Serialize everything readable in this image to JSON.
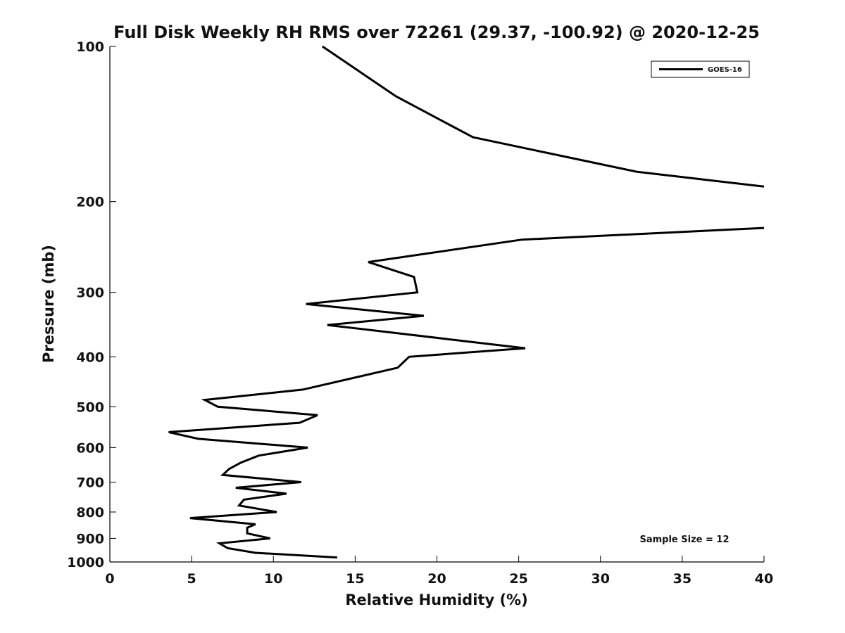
{
  "chart_data": {
    "type": "line",
    "title": "Full Disk Weekly RH RMS over 72261 (29.37, -100.92) @ 2020-12-25",
    "xlabel": "Relative Humidity (%)",
    "ylabel": "Pressure (mb)",
    "xlim": [
      0,
      40
    ],
    "ylim": [
      100,
      1000
    ],
    "yscale": "log",
    "y_reversed": true,
    "xticks": [
      "0",
      "5",
      "10",
      "15",
      "20",
      "25",
      "30",
      "35",
      "40"
    ],
    "xtick_values": [
      0,
      5,
      10,
      15,
      20,
      25,
      30,
      35,
      40
    ],
    "yticks": [
      "100",
      "200",
      "300",
      "400",
      "500",
      "600",
      "700",
      "800",
      "900",
      "1000"
    ],
    "ytick_values": [
      100,
      200,
      300,
      400,
      500,
      600,
      700,
      800,
      900,
      1000
    ],
    "legend": {
      "position": "top-right",
      "entries": [
        "GOES-16"
      ]
    },
    "annotation": "Sample Size = 12",
    "series": [
      {
        "name": "GOES-16",
        "color": "#000000",
        "segments": [
          [
            {
              "x": 13.0,
              "y": 100
            },
            {
              "x": 17.5,
              "y": 125
            },
            {
              "x": 22.2,
              "y": 150
            },
            {
              "x": 32.2,
              "y": 175
            },
            {
              "x": 40.0,
              "y": 187
            }
          ],
          [
            {
              "x": 40.0,
              "y": 225
            },
            {
              "x": 25.2,
              "y": 237
            },
            {
              "x": 15.8,
              "y": 262
            },
            {
              "x": 18.6,
              "y": 280
            },
            {
              "x": 18.8,
              "y": 300
            },
            {
              "x": 12.0,
              "y": 316
            },
            {
              "x": 19.2,
              "y": 333
            },
            {
              "x": 13.3,
              "y": 347
            },
            {
              "x": 25.4,
              "y": 385
            },
            {
              "x": 18.3,
              "y": 400
            },
            {
              "x": 17.6,
              "y": 420
            },
            {
              "x": 11.8,
              "y": 463
            },
            {
              "x": 5.8,
              "y": 485
            },
            {
              "x": 6.6,
              "y": 500
            },
            {
              "x": 12.7,
              "y": 519
            },
            {
              "x": 11.6,
              "y": 537
            },
            {
              "x": 3.6,
              "y": 560
            },
            {
              "x": 5.4,
              "y": 577
            },
            {
              "x": 12.1,
              "y": 600
            },
            {
              "x": 9.1,
              "y": 622
            },
            {
              "x": 8.0,
              "y": 642
            },
            {
              "x": 7.3,
              "y": 660
            },
            {
              "x": 6.9,
              "y": 678
            },
            {
              "x": 11.7,
              "y": 700
            },
            {
              "x": 7.7,
              "y": 718
            },
            {
              "x": 10.8,
              "y": 737
            },
            {
              "x": 8.2,
              "y": 757
            },
            {
              "x": 7.9,
              "y": 777
            },
            {
              "x": 10.2,
              "y": 800
            },
            {
              "x": 4.9,
              "y": 822
            },
            {
              "x": 8.9,
              "y": 845
            },
            {
              "x": 8.4,
              "y": 858
            },
            {
              "x": 8.4,
              "y": 880
            },
            {
              "x": 9.8,
              "y": 900
            },
            {
              "x": 6.7,
              "y": 920
            },
            {
              "x": 7.2,
              "y": 940
            },
            {
              "x": 8.9,
              "y": 960
            },
            {
              "x": 13.9,
              "y": 980
            }
          ]
        ]
      }
    ]
  }
}
